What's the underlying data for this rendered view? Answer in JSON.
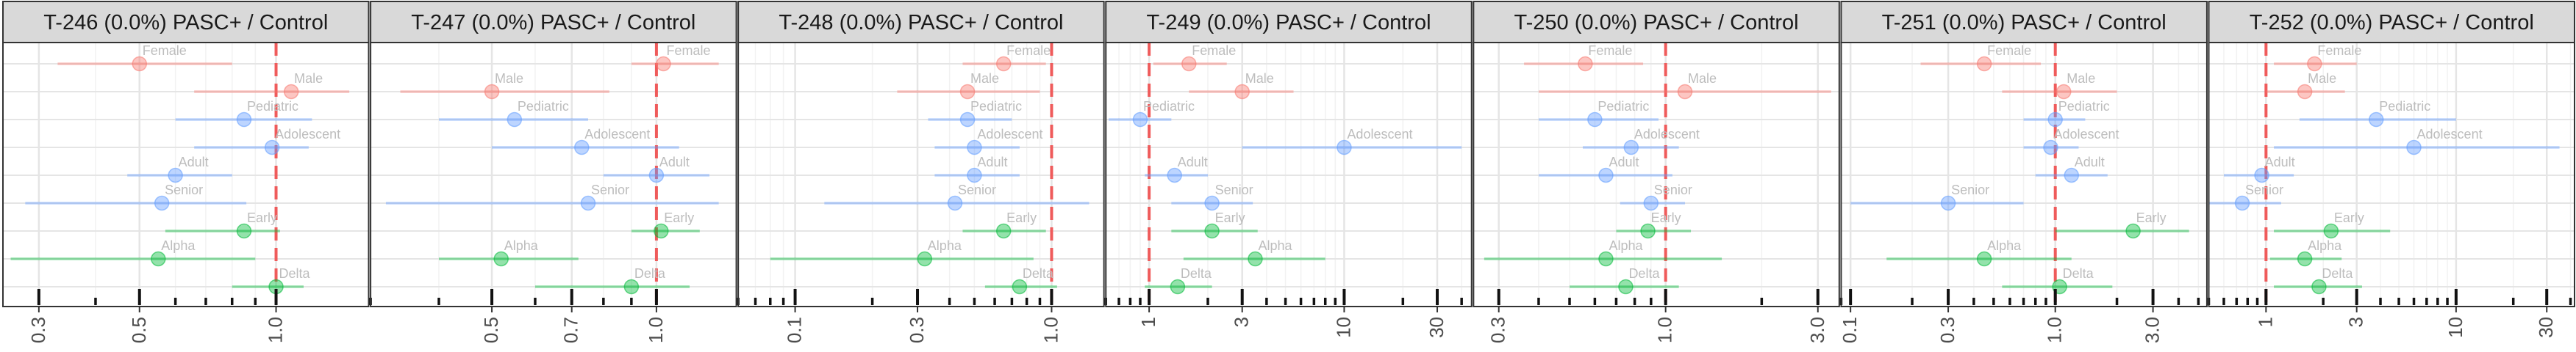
{
  "figure": {
    "colors": {
      "strip_fill": "#d9d9d9",
      "strip_border": "#333333",
      "grid_major": "#e5e5e5",
      "grid_minor": "#f2f2f2",
      "reference_line": "#ef5b5b",
      "label_text": "#bdbdbd"
    }
  },
  "chart_data": [
    {
      "type": "forest",
      "title": "T-246 (0.0%) PASC+ / Control",
      "x_scale": "log",
      "xlim": [
        0.25,
        1.6
      ],
      "x_ticks": [
        0.3,
        0.5,
        1.0
      ],
      "x_tick_labels": [
        "0.3",
        "0.5",
        "1.0"
      ],
      "reference_value": 1.0,
      "rows": [
        {
          "label": "Female",
          "group": "sex",
          "color": "#f8766d",
          "estimate": 0.5,
          "lower": 0.33,
          "upper": 0.8
        },
        {
          "label": "Male",
          "group": "sex",
          "color": "#f8766d",
          "estimate": 1.08,
          "lower": 0.66,
          "upper": 1.45
        },
        {
          "label": "Pediatric",
          "group": "age",
          "color": "#619cff",
          "estimate": 0.85,
          "lower": 0.6,
          "upper": 1.2
        },
        {
          "label": "Adolescent",
          "group": "age",
          "color": "#619cff",
          "estimate": 0.98,
          "lower": 0.66,
          "upper": 1.18
        },
        {
          "label": "Adult",
          "group": "age",
          "color": "#619cff",
          "estimate": 0.6,
          "lower": 0.47,
          "upper": 0.8
        },
        {
          "label": "Senior",
          "group": "age",
          "color": "#619cff",
          "estimate": 0.56,
          "lower": 0.28,
          "upper": 0.86
        },
        {
          "label": "Early",
          "group": "era",
          "color": "#00ba38",
          "estimate": 0.85,
          "lower": 0.57,
          "upper": 1.02
        },
        {
          "label": "Alpha",
          "group": "era",
          "color": "#00ba38",
          "estimate": 0.55,
          "lower": 0.26,
          "upper": 0.9
        },
        {
          "label": "Delta",
          "group": "era",
          "color": "#00ba38",
          "estimate": 1.0,
          "lower": 0.8,
          "upper": 1.15
        }
      ]
    },
    {
      "type": "forest",
      "title": "T-247 (0.0%) PASC+ / Control",
      "x_scale": "log",
      "xlim": [
        0.3,
        1.4
      ],
      "x_ticks": [
        0.5,
        0.7,
        1.0
      ],
      "x_tick_labels": [
        "0.5",
        "0.7",
        "1.0"
      ],
      "reference_value": 1.0,
      "rows": [
        {
          "label": "Female",
          "group": "sex",
          "color": "#f8766d",
          "estimate": 1.03,
          "lower": 0.9,
          "upper": 1.3
        },
        {
          "label": "Male",
          "group": "sex",
          "color": "#f8766d",
          "estimate": 0.5,
          "lower": 0.34,
          "upper": 0.82
        },
        {
          "label": "Pediatric",
          "group": "age",
          "color": "#619cff",
          "estimate": 0.55,
          "lower": 0.4,
          "upper": 0.75
        },
        {
          "label": "Adolescent",
          "group": "age",
          "color": "#619cff",
          "estimate": 0.73,
          "lower": 0.5,
          "upper": 1.1
        },
        {
          "label": "Adult",
          "group": "age",
          "color": "#619cff",
          "estimate": 1.0,
          "lower": 0.8,
          "upper": 1.25
        },
        {
          "label": "Senior",
          "group": "age",
          "color": "#619cff",
          "estimate": 0.75,
          "lower": 0.32,
          "upper": 1.3
        },
        {
          "label": "Early",
          "group": "era",
          "color": "#00ba38",
          "estimate": 1.02,
          "lower": 0.9,
          "upper": 1.2
        },
        {
          "label": "Alpha",
          "group": "era",
          "color": "#00ba38",
          "estimate": 0.52,
          "lower": 0.4,
          "upper": 0.72
        },
        {
          "label": "Delta",
          "group": "era",
          "color": "#00ba38",
          "estimate": 0.9,
          "lower": 0.6,
          "upper": 1.15
        }
      ]
    },
    {
      "type": "forest",
      "title": "T-248 (0.0%) PASC+ / Control",
      "x_scale": "log",
      "xlim": [
        0.06,
        1.6
      ],
      "x_ticks": [
        0.1,
        0.3,
        1.0
      ],
      "x_tick_labels": [
        "0.1",
        "0.3",
        "1.0"
      ],
      "reference_value": 1.0,
      "rows": [
        {
          "label": "Female",
          "group": "sex",
          "color": "#f8766d",
          "estimate": 0.65,
          "lower": 0.45,
          "upper": 0.95
        },
        {
          "label": "Male",
          "group": "sex",
          "color": "#f8766d",
          "estimate": 0.47,
          "lower": 0.25,
          "upper": 0.9
        },
        {
          "label": "Pediatric",
          "group": "age",
          "color": "#619cff",
          "estimate": 0.47,
          "lower": 0.33,
          "upper": 0.7
        },
        {
          "label": "Adolescent",
          "group": "age",
          "color": "#619cff",
          "estimate": 0.5,
          "lower": 0.35,
          "upper": 0.75
        },
        {
          "label": "Adult",
          "group": "age",
          "color": "#619cff",
          "estimate": 0.5,
          "lower": 0.35,
          "upper": 0.75
        },
        {
          "label": "Senior",
          "group": "age",
          "color": "#619cff",
          "estimate": 0.42,
          "lower": 0.13,
          "upper": 1.4
        },
        {
          "label": "Early",
          "group": "era",
          "color": "#00ba38",
          "estimate": 0.65,
          "lower": 0.45,
          "upper": 0.95
        },
        {
          "label": "Alpha",
          "group": "era",
          "color": "#00ba38",
          "estimate": 0.32,
          "lower": 0.08,
          "upper": 0.85
        },
        {
          "label": "Delta",
          "group": "era",
          "color": "#00ba38",
          "estimate": 0.75,
          "lower": 0.55,
          "upper": 1.05
        }
      ]
    },
    {
      "type": "forest",
      "title": "T-249 (0.0%) PASC+ / Control",
      "x_scale": "log",
      "xlim": [
        0.6,
        45
      ],
      "x_ticks": [
        1,
        3,
        10,
        30
      ],
      "x_tick_labels": [
        "1",
        "3",
        "10",
        "30"
      ],
      "reference_value": 1.0,
      "rows": [
        {
          "label": "Female",
          "group": "sex",
          "color": "#f8766d",
          "estimate": 1.6,
          "lower": 1.05,
          "upper": 2.5
        },
        {
          "label": "Male",
          "group": "sex",
          "color": "#f8766d",
          "estimate": 3.0,
          "lower": 1.6,
          "upper": 5.5
        },
        {
          "label": "Pediatric",
          "group": "age",
          "color": "#619cff",
          "estimate": 0.9,
          "lower": 0.62,
          "upper": 1.3
        },
        {
          "label": "Adolescent",
          "group": "age",
          "color": "#619cff",
          "estimate": 10.0,
          "lower": 3.0,
          "upper": 40.0
        },
        {
          "label": "Adult",
          "group": "age",
          "color": "#619cff",
          "estimate": 1.35,
          "lower": 0.95,
          "upper": 2.0
        },
        {
          "label": "Senior",
          "group": "age",
          "color": "#619cff",
          "estimate": 2.1,
          "lower": 1.3,
          "upper": 3.4
        },
        {
          "label": "Early",
          "group": "era",
          "color": "#00ba38",
          "estimate": 2.1,
          "lower": 1.3,
          "upper": 3.6
        },
        {
          "label": "Alpha",
          "group": "era",
          "color": "#00ba38",
          "estimate": 3.5,
          "lower": 1.5,
          "upper": 8.0
        },
        {
          "label": "Delta",
          "group": "era",
          "color": "#00ba38",
          "estimate": 1.4,
          "lower": 0.95,
          "upper": 2.1
        }
      ]
    },
    {
      "type": "forest",
      "title": "T-250 (0.0%) PASC+ / Control",
      "x_scale": "log",
      "xlim": [
        0.25,
        3.5
      ],
      "x_ticks": [
        0.3,
        1.0,
        3.0
      ],
      "x_tick_labels": [
        "0.3",
        "1.0",
        "3.0"
      ],
      "reference_value": 1.0,
      "rows": [
        {
          "label": "Female",
          "group": "sex",
          "color": "#f8766d",
          "estimate": 0.56,
          "lower": 0.36,
          "upper": 0.85
        },
        {
          "label": "Male",
          "group": "sex",
          "color": "#f8766d",
          "estimate": 1.15,
          "lower": 0.4,
          "upper": 3.3
        },
        {
          "label": "Pediatric",
          "group": "age",
          "color": "#619cff",
          "estimate": 0.6,
          "lower": 0.4,
          "upper": 0.95
        },
        {
          "label": "Adolescent",
          "group": "age",
          "color": "#619cff",
          "estimate": 0.78,
          "lower": 0.55,
          "upper": 1.1
        },
        {
          "label": "Adult",
          "group": "age",
          "color": "#619cff",
          "estimate": 0.65,
          "lower": 0.4,
          "upper": 1.05
        },
        {
          "label": "Senior",
          "group": "age",
          "color": "#619cff",
          "estimate": 0.9,
          "lower": 0.72,
          "upper": 1.15
        },
        {
          "label": "Early",
          "group": "era",
          "color": "#00ba38",
          "estimate": 0.88,
          "lower": 0.7,
          "upper": 1.2
        },
        {
          "label": "Alpha",
          "group": "era",
          "color": "#00ba38",
          "estimate": 0.65,
          "lower": 0.27,
          "upper": 1.5
        },
        {
          "label": "Delta",
          "group": "era",
          "color": "#00ba38",
          "estimate": 0.75,
          "lower": 0.5,
          "upper": 1.1
        }
      ]
    },
    {
      "type": "forest",
      "title": "T-251 (0.0%) PASC+ / Control",
      "x_scale": "log",
      "xlim": [
        0.09,
        5.5
      ],
      "x_ticks": [
        0.1,
        0.3,
        1.0,
        3.0
      ],
      "x_tick_labels": [
        "0.1",
        "0.3",
        "1.0",
        "3.0"
      ],
      "reference_value": 1.0,
      "rows": [
        {
          "label": "Female",
          "group": "sex",
          "color": "#f8766d",
          "estimate": 0.45,
          "lower": 0.22,
          "upper": 0.85
        },
        {
          "label": "Male",
          "group": "sex",
          "color": "#f8766d",
          "estimate": 1.1,
          "lower": 0.55,
          "upper": 2.0
        },
        {
          "label": "Pediatric",
          "group": "age",
          "color": "#619cff",
          "estimate": 1.0,
          "lower": 0.7,
          "upper": 1.4
        },
        {
          "label": "Adolescent",
          "group": "age",
          "color": "#619cff",
          "estimate": 0.95,
          "lower": 0.7,
          "upper": 1.3
        },
        {
          "label": "Adult",
          "group": "age",
          "color": "#619cff",
          "estimate": 1.2,
          "lower": 0.8,
          "upper": 1.8
        },
        {
          "label": "Senior",
          "group": "age",
          "color": "#619cff",
          "estimate": 0.3,
          "lower": 0.1,
          "upper": 0.7
        },
        {
          "label": "Early",
          "group": "era",
          "color": "#00ba38",
          "estimate": 2.4,
          "lower": 1.0,
          "upper": 4.5
        },
        {
          "label": "Alpha",
          "group": "era",
          "color": "#00ba38",
          "estimate": 0.45,
          "lower": 0.15,
          "upper": 1.2
        },
        {
          "label": "Delta",
          "group": "era",
          "color": "#00ba38",
          "estimate": 1.05,
          "lower": 0.55,
          "upper": 1.9
        }
      ]
    },
    {
      "type": "forest",
      "title": "T-252 (0.0%) PASC+ / Control",
      "x_scale": "log",
      "xlim": [
        0.5,
        42
      ],
      "x_ticks": [
        1,
        3,
        10,
        30
      ],
      "x_tick_labels": [
        "1",
        "3",
        "10",
        "30"
      ],
      "reference_value": 1.0,
      "rows": [
        {
          "label": "Female",
          "group": "sex",
          "color": "#f8766d",
          "estimate": 1.8,
          "lower": 1.1,
          "upper": 3.0
        },
        {
          "label": "Male",
          "group": "sex",
          "color": "#f8766d",
          "estimate": 1.6,
          "lower": 1.0,
          "upper": 2.6
        },
        {
          "label": "Pediatric",
          "group": "age",
          "color": "#619cff",
          "estimate": 3.8,
          "lower": 1.5,
          "upper": 10.0
        },
        {
          "label": "Adolescent",
          "group": "age",
          "color": "#619cff",
          "estimate": 6.0,
          "lower": 1.1,
          "upper": 35.0
        },
        {
          "label": "Adult",
          "group": "age",
          "color": "#619cff",
          "estimate": 0.95,
          "lower": 0.6,
          "upper": 1.4
        },
        {
          "label": "Senior",
          "group": "age",
          "color": "#619cff",
          "estimate": 0.75,
          "lower": 0.5,
          "upper": 1.2
        },
        {
          "label": "Early",
          "group": "era",
          "color": "#00ba38",
          "estimate": 2.2,
          "lower": 1.1,
          "upper": 4.5
        },
        {
          "label": "Alpha",
          "group": "era",
          "color": "#00ba38",
          "estimate": 1.6,
          "lower": 1.05,
          "upper": 2.5
        },
        {
          "label": "Delta",
          "group": "era",
          "color": "#00ba38",
          "estimate": 1.9,
          "lower": 1.1,
          "upper": 3.2
        }
      ]
    }
  ]
}
